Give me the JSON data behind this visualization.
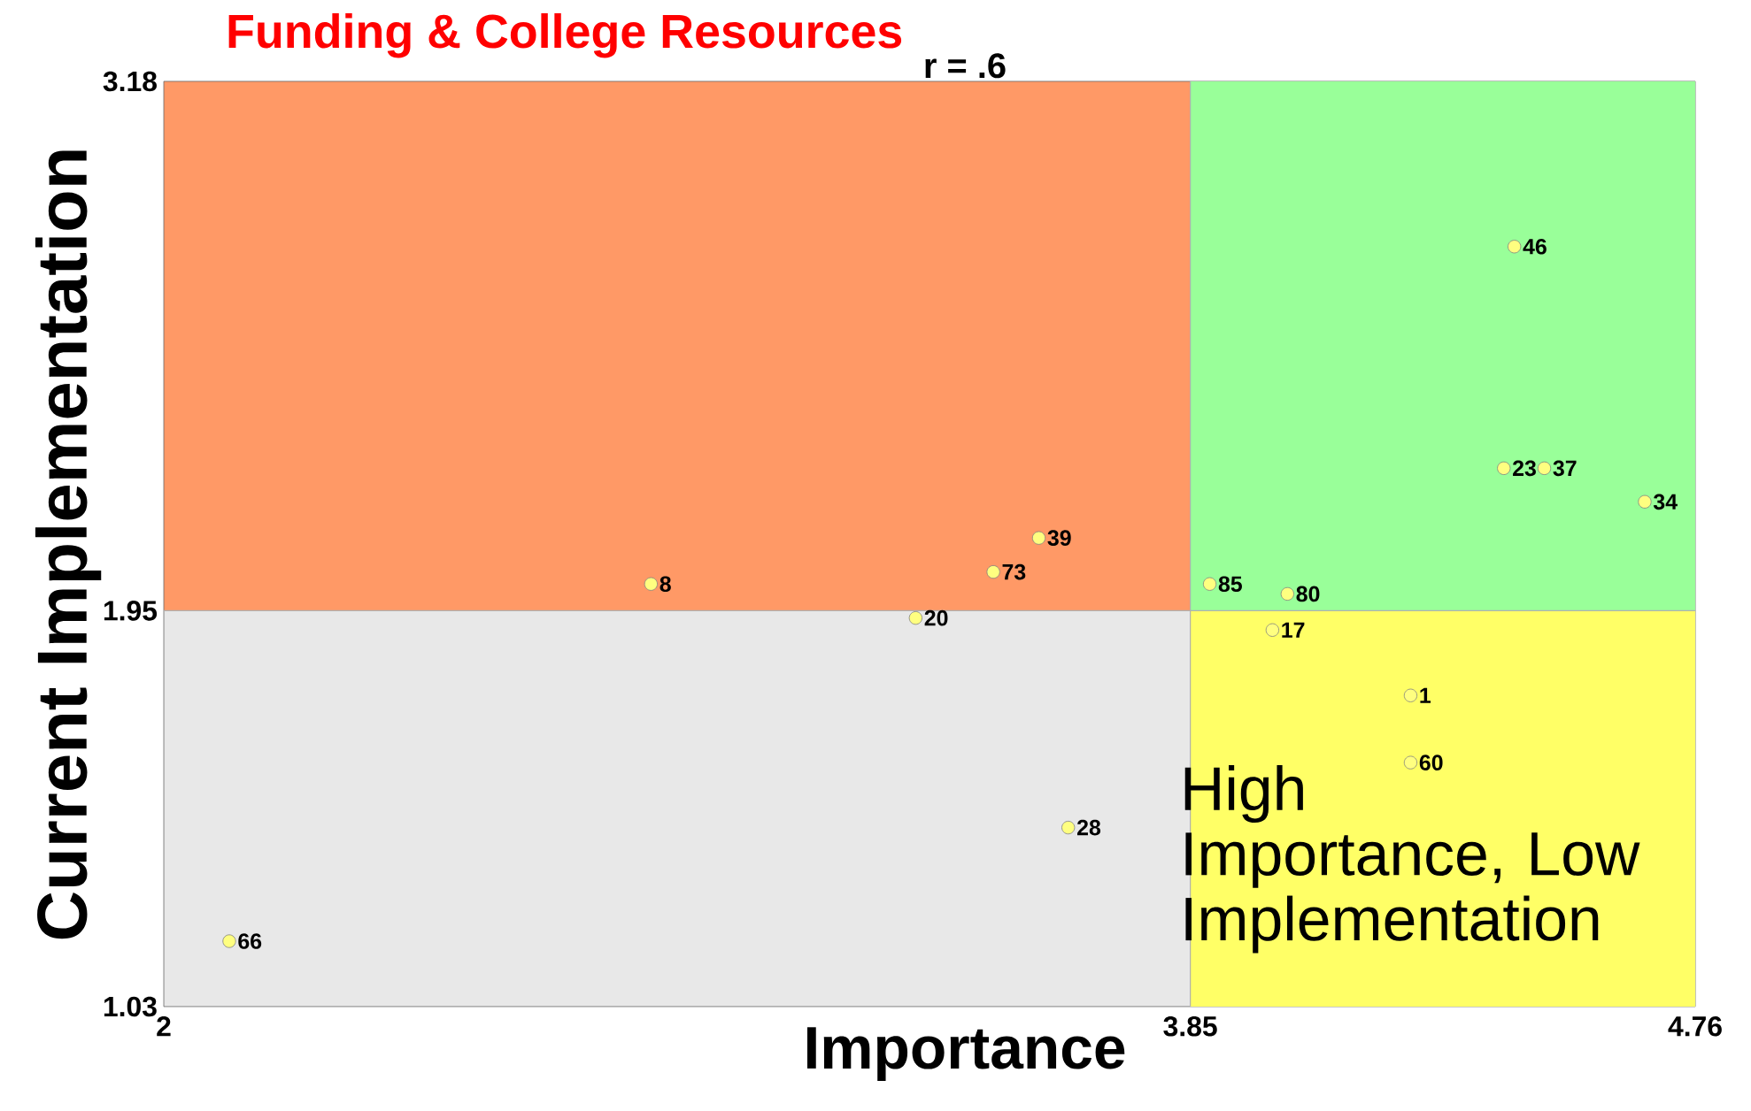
{
  "chart_data": {
    "type": "scatter",
    "title": "Funding & College Resources",
    "subtitle": "r = .6",
    "xlabel": "Importance",
    "ylabel": "Current Implementation",
    "annotations": [
      "High Importance, Low Implementation",
      {
        "text": "8",
        "x": 2.878,
        "y": 2.012
      },
      {
        "text": "39",
        "x": 3.577,
        "y": 2.119
      },
      {
        "text": "73",
        "x": 3.495,
        "y": 2.04
      },
      {
        "text": "20",
        "x": 3.355,
        "y": 1.933
      },
      {
        "text": "28",
        "x": 3.63,
        "y": 1.446
      },
      {
        "text": "66",
        "x": 2.118,
        "y": 1.182
      },
      {
        "text": "46",
        "x": 4.434,
        "y": 2.796
      },
      {
        "text": "23",
        "x": 4.415,
        "y": 2.281
      },
      {
        "text": "37",
        "x": 4.488,
        "y": 2.281
      },
      {
        "text": "34",
        "x": 4.669,
        "y": 2.203
      },
      {
        "text": "85",
        "x": 3.885,
        "y": 2.012
      },
      {
        "text": "80",
        "x": 4.025,
        "y": 1.989
      },
      {
        "text": "17",
        "x": 3.998,
        "y": 1.905
      },
      {
        "text": "1",
        "x": 4.247,
        "y": 1.753
      },
      {
        "text": "60",
        "x": 4.247,
        "y": 1.597
      }
    ],
    "series": [
      {
        "type": "area",
        "color": "#99ff99",
        "x": [
          3.85,
          4.76
        ],
        "values": [
          3.18,
          3.18
        ]
      },
      {
        "type": "area",
        "color": "#ffff66",
        "x": [
          3.85,
          4.76
        ],
        "values": [
          1.95,
          1.95
        ]
      },
      {
        "color": "#ffff80",
        "x": [
          2.878,
          3.577,
          3.495,
          3.355,
          3.63,
          2.118,
          4.434,
          4.415,
          4.488,
          4.669,
          3.885,
          4.025,
          3.998,
          4.247,
          4.247
        ],
        "values": [
          2.012,
          2.119,
          2.04,
          1.933,
          1.446,
          1.182,
          2.796,
          2.281,
          2.281,
          2.203,
          2.012,
          1.989,
          1.905,
          1.753,
          1.597
        ]
      }
    ],
    "xlim": [
      2,
      4.76
    ],
    "ylim": [
      1.03,
      3.18
    ],
    "xticks": [
      2,
      3.85,
      4.76
    ],
    "yticks": [
      1.03,
      1.95,
      3.18
    ],
    "ref_lines": [
      {
        "axis": "x",
        "value": 3.85,
        "color": "#b0b0b0"
      },
      {
        "axis": "y",
        "value": 1.95,
        "color": "#b0b0b0"
      }
    ],
    "bands": [
      {
        "axis": "y",
        "from": 1.95,
        "to": 3.18,
        "color": "#ff9966"
      },
      {
        "axis": "y",
        "from": 1.03,
        "to": 1.95,
        "color": "#e8e8e8"
      }
    ],
    "grid": false
  }
}
